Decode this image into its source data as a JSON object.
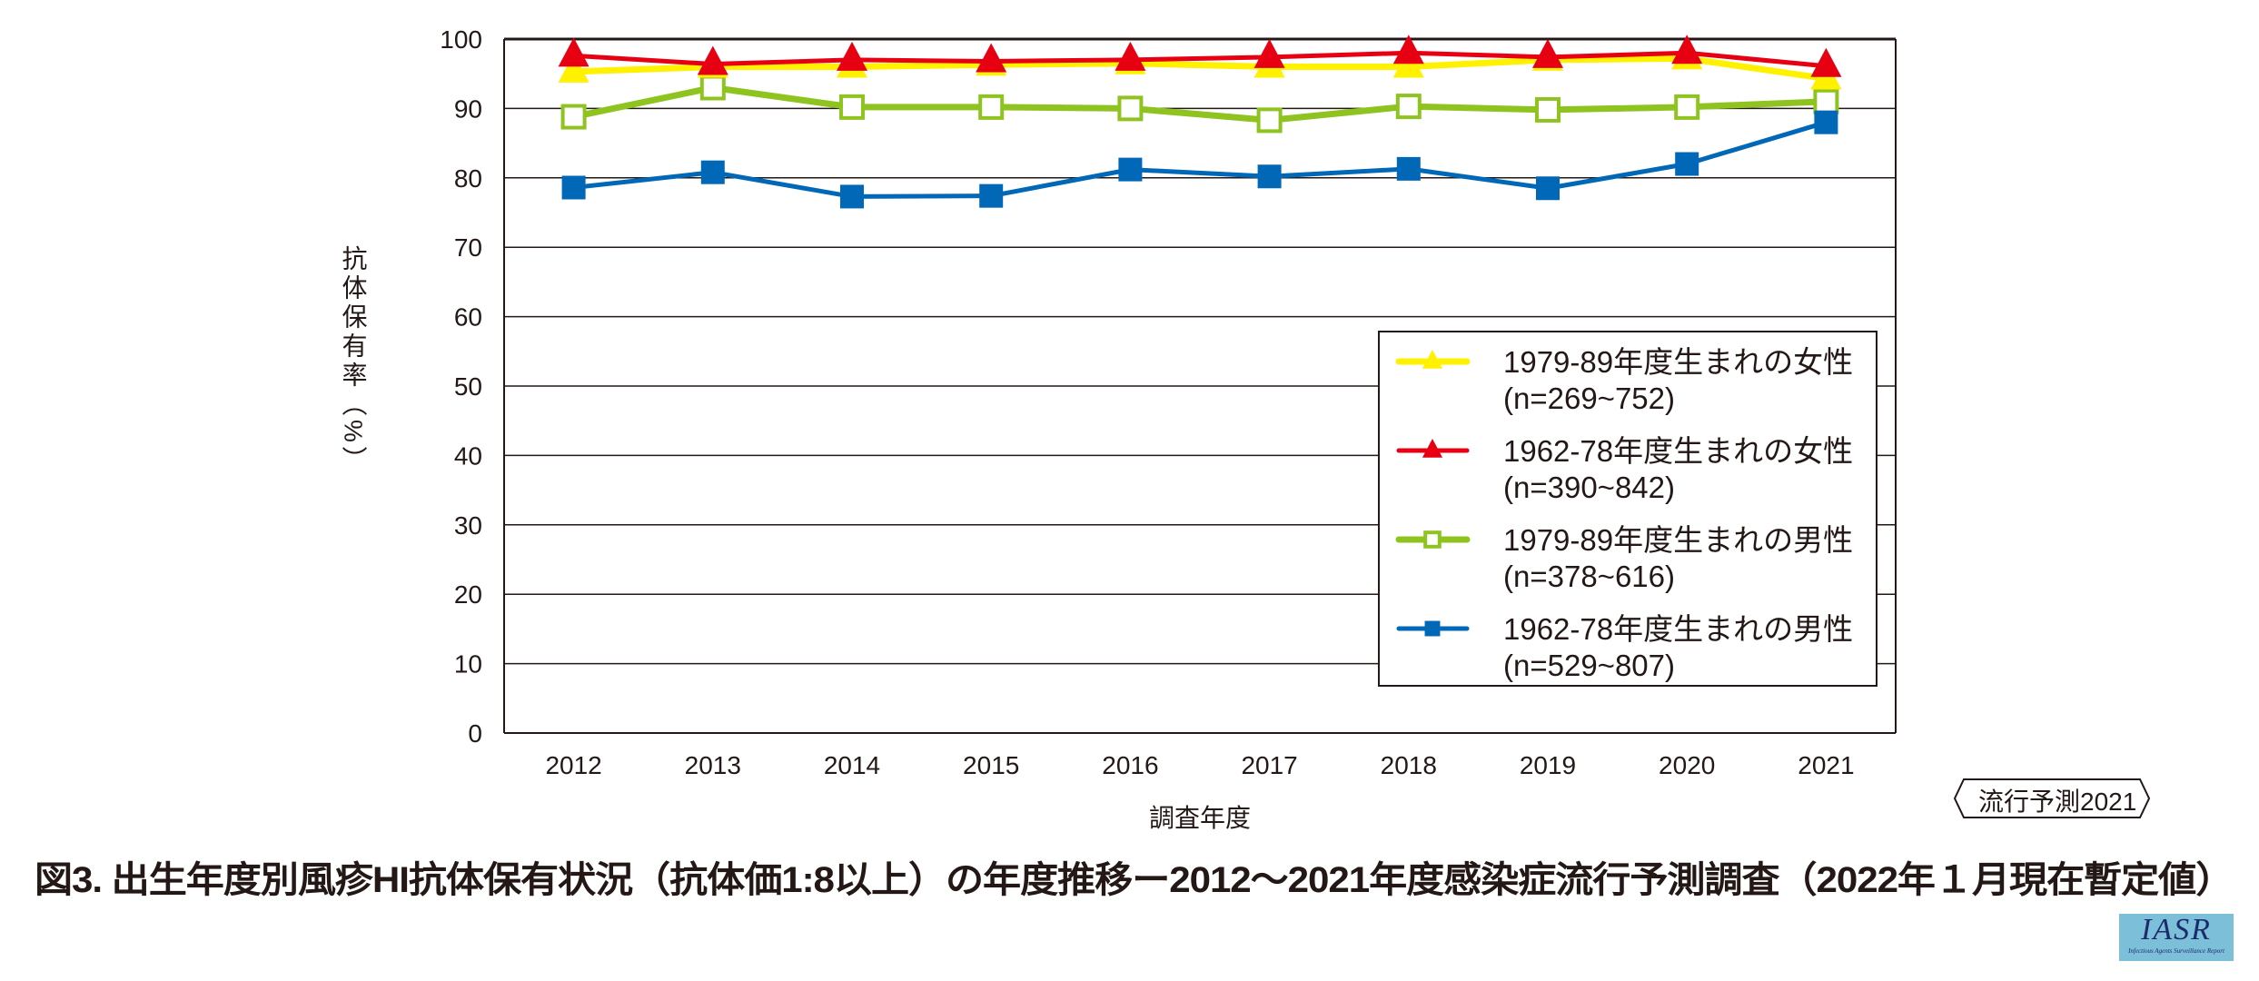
{
  "chart_data": {
    "type": "line",
    "title": "図3. 出生年度別風疹HI抗体保有状況（抗体価1:8以上）の年度推移ー2012〜2021年度感染症流行予測調査（2022年１月現在暫定値）",
    "xlabel": "調査年度",
    "ylabel": "抗体保有率（%）",
    "ylim": [
      0,
      100
    ],
    "yticks": [
      "0",
      "10",
      "20",
      "30",
      "40",
      "50",
      "60",
      "70",
      "80",
      "90",
      "100"
    ],
    "categories": [
      "2012",
      "2013",
      "2014",
      "2015",
      "2016",
      "2017",
      "2018",
      "2019",
      "2020",
      "2021"
    ],
    "grid": "horizontal",
    "legend_position": "lower-right",
    "series": [
      {
        "name": "1979-89年度生まれの女性",
        "n": "(n=269~752)",
        "color": "#fff100",
        "marker": "triangle",
        "values": [
          95.3,
          96.0,
          96.0,
          96.3,
          96.5,
          96.0,
          96.0,
          97.0,
          97.2,
          94.3
        ]
      },
      {
        "name": "1962-78年度生まれの女性",
        "n": "(n=390~842)",
        "color": "#e60012",
        "marker": "triangle",
        "values": [
          97.6,
          96.4,
          97.0,
          96.8,
          97.0,
          97.4,
          98.0,
          97.4,
          98.0,
          96.1
        ]
      },
      {
        "name": "1979-89年度生まれの男性",
        "n": "(n=378~616)",
        "color": "#8fc31f",
        "marker": "open-square",
        "values": [
          88.8,
          93.0,
          90.2,
          90.2,
          90.0,
          88.3,
          90.3,
          89.8,
          90.2,
          91.0
        ]
      },
      {
        "name": "1962-78年度生まれの男性",
        "n": "(n=529~807)",
        "color": "#0068b7",
        "marker": "square",
        "values": [
          78.6,
          80.8,
          77.3,
          77.4,
          81.2,
          80.2,
          81.3,
          78.5,
          82.0,
          88.0
        ]
      }
    ]
  },
  "stamp": "流行予測2021",
  "logo": {
    "title": "IASR",
    "subtitle": "Infectious Agents Surveillance Report"
  }
}
